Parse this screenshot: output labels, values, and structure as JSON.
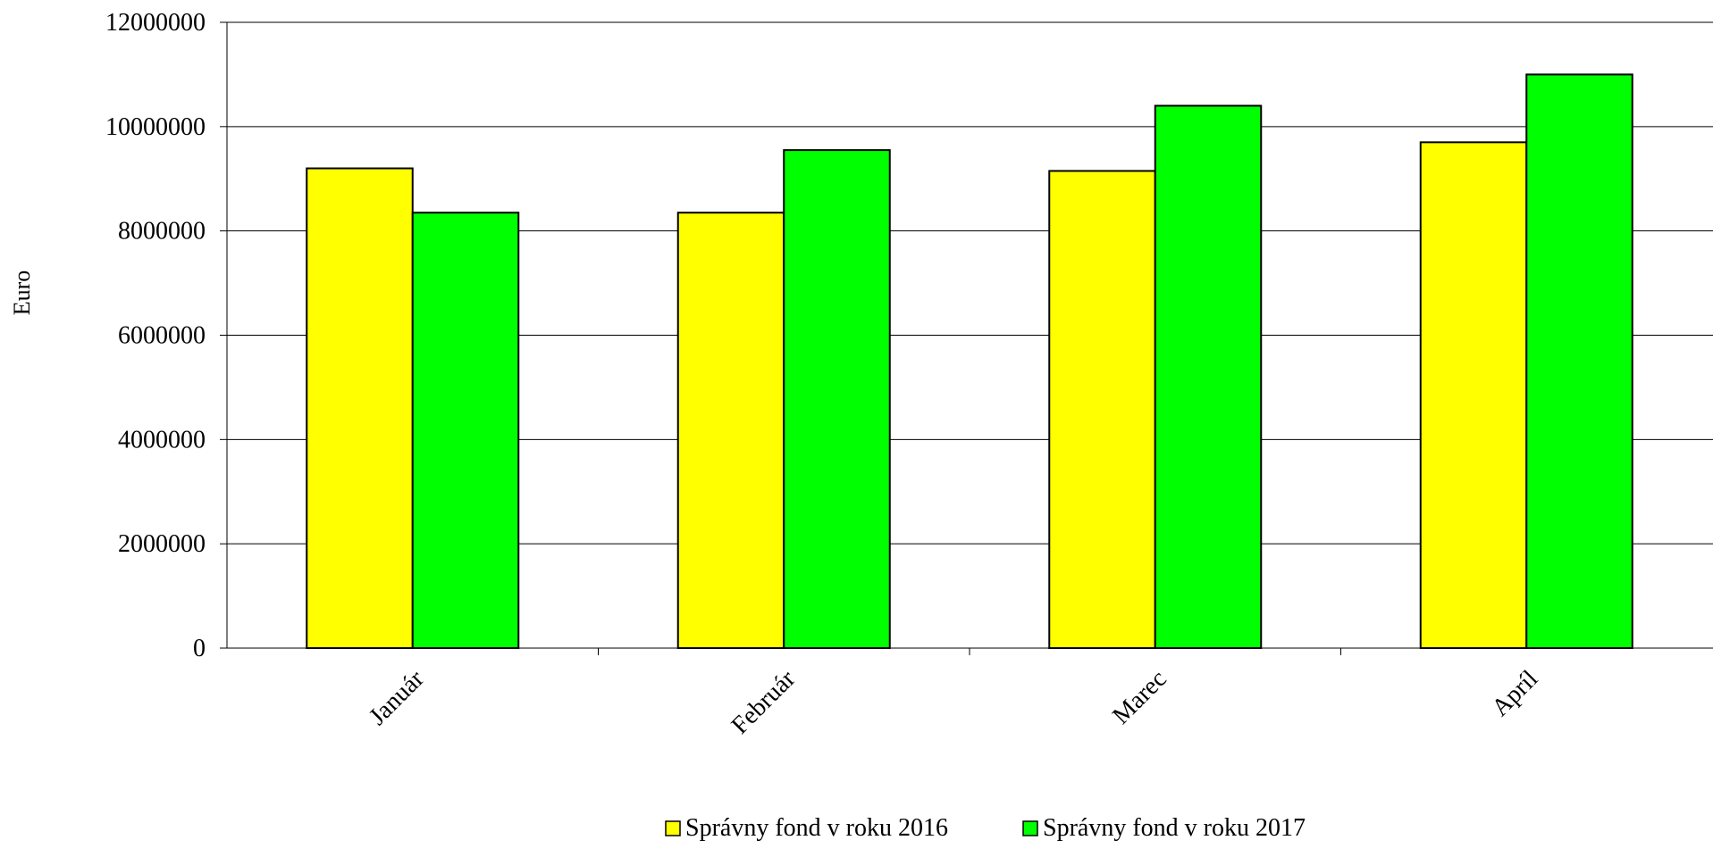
{
  "chart_data": {
    "type": "bar",
    "title": "",
    "xlabel": "",
    "ylabel": "Euro",
    "categories": [
      "Január",
      "Február",
      "Marec",
      "Apríl"
    ],
    "series": [
      {
        "name": "Správny fond v roku 2016",
        "color": "#FFFF00",
        "values": [
          9200000,
          8350000,
          9150000,
          9700000
        ]
      },
      {
        "name": "Správny fond v roku 2017",
        "color": "#00FF00",
        "values": [
          8350000,
          9550000,
          10400000,
          11000000
        ]
      }
    ],
    "ylim": [
      0,
      12000000
    ],
    "yticks": [
      0,
      2000000,
      4000000,
      6000000,
      8000000,
      10000000,
      12000000
    ],
    "ytick_labels": [
      "0",
      "2000000",
      "4000000",
      "6000000",
      "8000000",
      "10000000",
      "12000000"
    ],
    "grid": true,
    "legend_position": "bottom-center"
  }
}
